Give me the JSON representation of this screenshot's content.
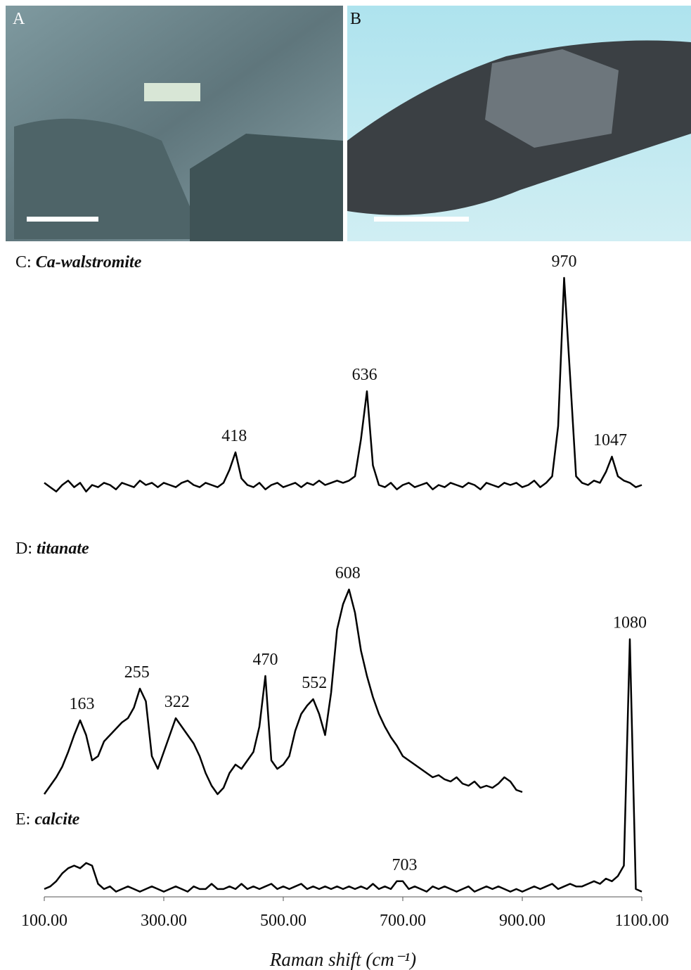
{
  "images": [
    {
      "label": "A"
    },
    {
      "label": "B"
    }
  ],
  "chart_data": [
    {
      "type": "line",
      "label": "C:",
      "title": "Ca-walstromite",
      "color": "#000000",
      "xlim": [
        100,
        1100
      ],
      "ylim": [
        0,
        100
      ],
      "x": [
        100,
        110,
        120,
        130,
        140,
        150,
        160,
        170,
        180,
        190,
        200,
        210,
        220,
        230,
        240,
        250,
        260,
        270,
        280,
        290,
        300,
        310,
        320,
        330,
        340,
        350,
        360,
        370,
        380,
        390,
        400,
        410,
        420,
        430,
        440,
        450,
        460,
        470,
        480,
        490,
        500,
        510,
        520,
        530,
        540,
        550,
        560,
        570,
        580,
        590,
        600,
        610,
        620,
        630,
        640,
        650,
        660,
        670,
        680,
        690,
        700,
        710,
        720,
        730,
        740,
        750,
        760,
        770,
        780,
        790,
        800,
        810,
        820,
        830,
        840,
        850,
        860,
        870,
        880,
        890,
        900,
        910,
        920,
        930,
        940,
        950,
        960,
        970,
        980,
        990,
        1000,
        1010,
        1020,
        1030,
        1040,
        1050,
        1060,
        1070,
        1080,
        1090,
        1100
      ],
      "values": [
        6,
        4,
        2,
        5,
        7,
        4,
        6,
        2,
        5,
        4,
        6,
        5,
        3,
        6,
        5,
        4,
        7,
        5,
        6,
        4,
        6,
        5,
        4,
        6,
        7,
        5,
        4,
        6,
        5,
        4,
        6,
        12,
        20,
        8,
        5,
        4,
        6,
        3,
        5,
        6,
        4,
        5,
        6,
        4,
        6,
        5,
        7,
        5,
        6,
        7,
        6,
        7,
        9,
        26,
        48,
        14,
        5,
        4,
        6,
        3,
        5,
        6,
        4,
        5,
        6,
        3,
        5,
        4,
        6,
        5,
        4,
        6,
        5,
        3,
        6,
        5,
        4,
        6,
        5,
        6,
        4,
        5,
        7,
        4,
        6,
        9,
        32,
        100,
        55,
        9,
        6,
        5,
        7,
        6,
        11,
        18,
        9,
        7,
        6,
        4,
        5
      ],
      "peaks": [
        418,
        636,
        970,
        1047
      ]
    },
    {
      "type": "line",
      "label": "D:",
      "title": "titanate",
      "color": "#000000",
      "xlim": [
        100,
        1100
      ],
      "ylim": [
        0,
        100
      ],
      "x": [
        100,
        110,
        120,
        130,
        140,
        150,
        160,
        170,
        180,
        190,
        200,
        210,
        220,
        230,
        240,
        250,
        260,
        270,
        280,
        290,
        300,
        310,
        320,
        330,
        340,
        350,
        360,
        370,
        380,
        390,
        400,
        410,
        420,
        430,
        440,
        450,
        460,
        470,
        480,
        490,
        500,
        510,
        520,
        530,
        540,
        550,
        560,
        570,
        580,
        590,
        600,
        610,
        620,
        630,
        640,
        650,
        660,
        670,
        680,
        690,
        700,
        710,
        720,
        730,
        740,
        750,
        760,
        770,
        780,
        790,
        800,
        810,
        820,
        830,
        840,
        850,
        860,
        870,
        880,
        890,
        900
      ],
      "values": [
        2,
        6,
        10,
        15,
        22,
        30,
        37,
        30,
        18,
        20,
        27,
        30,
        33,
        36,
        38,
        43,
        52,
        46,
        20,
        14,
        22,
        30,
        38,
        34,
        30,
        26,
        20,
        12,
        6,
        2,
        5,
        12,
        16,
        14,
        18,
        22,
        34,
        58,
        18,
        14,
        16,
        20,
        32,
        40,
        44,
        47,
        40,
        30,
        50,
        80,
        92,
        99,
        88,
        70,
        58,
        48,
        40,
        34,
        29,
        25,
        20,
        18,
        16,
        14,
        12,
        10,
        11,
        9,
        8,
        10,
        7,
        6,
        8,
        5,
        6,
        5,
        7,
        10,
        8,
        4,
        3
      ],
      "peaks": [
        163,
        255,
        322,
        470,
        552,
        608
      ]
    },
    {
      "type": "line",
      "label": "E:",
      "title": "calcite",
      "color": "#000000",
      "xlim": [
        100,
        1100
      ],
      "ylim": [
        0,
        100
      ],
      "xlabel": "Raman shift (cm⁻¹)",
      "xticks": [
        {
          "value": 100,
          "label": "100.00"
        },
        {
          "value": 300,
          "label": "300.00"
        },
        {
          "value": 500,
          "label": "500.00"
        },
        {
          "value": 700,
          "label": "700.00"
        },
        {
          "value": 900,
          "label": "900.00"
        },
        {
          "value": 1100,
          "label": "1100.00"
        }
      ],
      "x": [
        100,
        110,
        120,
        130,
        140,
        150,
        160,
        170,
        180,
        190,
        200,
        210,
        220,
        230,
        240,
        250,
        260,
        270,
        280,
        290,
        300,
        310,
        320,
        330,
        340,
        350,
        360,
        370,
        380,
        390,
        400,
        410,
        420,
        430,
        440,
        450,
        460,
        470,
        480,
        490,
        500,
        510,
        520,
        530,
        540,
        550,
        560,
        570,
        580,
        590,
        600,
        610,
        620,
        630,
        640,
        650,
        660,
        670,
        680,
        690,
        700,
        710,
        720,
        730,
        740,
        750,
        760,
        770,
        780,
        790,
        800,
        810,
        820,
        830,
        840,
        850,
        860,
        870,
        880,
        890,
        900,
        910,
        920,
        930,
        940,
        950,
        960,
        970,
        980,
        990,
        1000,
        1010,
        1020,
        1030,
        1040,
        1050,
        1060,
        1070,
        1080,
        1090,
        1100
      ],
      "values": [
        3,
        4,
        6,
        9,
        11,
        12,
        11,
        13,
        12,
        5,
        3,
        4,
        2,
        3,
        4,
        3,
        2,
        3,
        4,
        3,
        2,
        3,
        4,
        3,
        2,
        4,
        3,
        3,
        5,
        3,
        3,
        4,
        3,
        5,
        3,
        4,
        3,
        4,
        5,
        3,
        4,
        3,
        4,
        5,
        3,
        4,
        3,
        4,
        3,
        4,
        3,
        4,
        3,
        4,
        3,
        5,
        3,
        4,
        3,
        6,
        6,
        3,
        4,
        3,
        2,
        4,
        3,
        4,
        3,
        2,
        3,
        4,
        2,
        3,
        4,
        3,
        4,
        3,
        2,
        3,
        2,
        3,
        4,
        3,
        4,
        5,
        3,
        4,
        5,
        4,
        4,
        5,
        6,
        5,
        7,
        6,
        8,
        12,
        99,
        3,
        2
      ],
      "peaks": [
        703,
        1080
      ]
    }
  ]
}
